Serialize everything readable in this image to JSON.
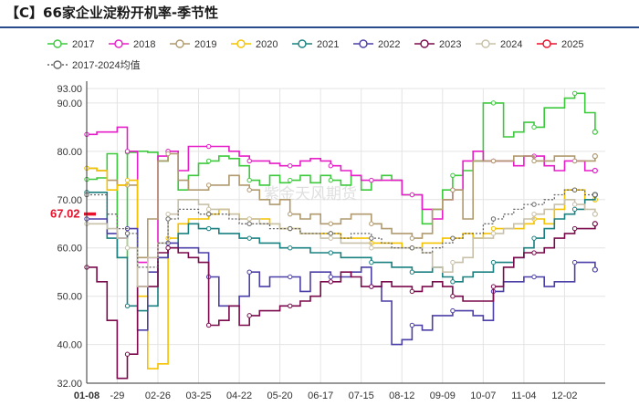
{
  "header": {
    "title": "【C】66家企业淀粉开机率-季节性"
  },
  "watermark": "紫金天风期货",
  "chart_data": {
    "type": "line",
    "title": "【C】66家企业淀粉开机率-季节性",
    "xlabel": "",
    "ylabel": "",
    "ylim": [
      32,
      93
    ],
    "y_ticks": [
      "93.00",
      "90.00",
      "80.00",
      "70.00",
      "60.00",
      "50.00",
      "40.00",
      "32.00"
    ],
    "x_range": [
      0,
      51
    ],
    "x_ticks": [
      {
        "x": 0,
        "label": "01-08",
        "highlight": true
      },
      {
        "x": 3,
        "label": "-29"
      },
      {
        "x": 7,
        "label": "02-26"
      },
      {
        "x": 11,
        "label": "03-25"
      },
      {
        "x": 15,
        "label": "04-22"
      },
      {
        "x": 19,
        "label": "05-20"
      },
      {
        "x": 23,
        "label": "06-17"
      },
      {
        "x": 27,
        "label": "07-15"
      },
      {
        "x": 31,
        "label": "08-12"
      },
      {
        "x": 35,
        "label": "09-09"
      },
      {
        "x": 39,
        "label": "10-07"
      },
      {
        "x": 43,
        "label": "11-04"
      },
      {
        "x": 47,
        "label": "12-02"
      }
    ],
    "grid": true,
    "legend_position": "top",
    "current_value": {
      "label": "67.02",
      "value": 67.02,
      "color": "#e8102a"
    },
    "series": [
      {
        "name": "2017",
        "color": "#3cc93c",
        "dash": false,
        "values": [
          74.2,
          74.5,
          79.5,
          58,
          79.8,
          80,
          79.8,
          78,
          80,
          72,
          75,
          77.5,
          78,
          79,
          78.5,
          77,
          74,
          73,
          75,
          73.5,
          74,
          75,
          73.5,
          75,
          74,
          73,
          75,
          72,
          74,
          75,
          74,
          71,
          71,
          65,
          68,
          72,
          75,
          76,
          78,
          90,
          90,
          83,
          84,
          86,
          85,
          89,
          89,
          91,
          92,
          88,
          84
        ]
      },
      {
        "name": "2018",
        "color": "#e61ec8",
        "dash": false,
        "values": [
          83.5,
          84,
          84,
          85,
          80,
          57,
          58,
          79,
          80,
          76,
          81,
          81,
          81,
          81,
          80,
          79,
          78,
          78,
          77.5,
          77,
          77,
          78,
          78.5,
          78,
          77,
          76,
          75,
          74,
          74,
          74,
          74,
          71,
          71,
          68,
          66,
          70,
          72,
          78,
          80,
          78,
          78,
          78,
          77,
          79,
          79,
          77,
          76,
          78,
          78,
          76,
          76
        ]
      },
      {
        "name": "2019",
        "color": "#b09a6e",
        "dash": false,
        "values": [
          76.5,
          76,
          74,
          73,
          73,
          58,
          66,
          78,
          79.5,
          74,
          72,
          72,
          73,
          73,
          75,
          73,
          72,
          70,
          69,
          70,
          67,
          66,
          67,
          65,
          65,
          66,
          67,
          67,
          65,
          64,
          63,
          63,
          62,
          63,
          68,
          70,
          72,
          66,
          78,
          78,
          78,
          78,
          79,
          79,
          78,
          78,
          79,
          79,
          78,
          78,
          79
        ]
      },
      {
        "name": "2020",
        "color": "#f5c200",
        "dash": false,
        "values": [
          76.5,
          76,
          72,
          73,
          74,
          50,
          35,
          36,
          62,
          65,
          66,
          66,
          67,
          68,
          67,
          66,
          66,
          66,
          65,
          64,
          64,
          63,
          63,
          63,
          63,
          62,
          62,
          62,
          61,
          61,
          61,
          60,
          60,
          61,
          61,
          62,
          62,
          63,
          62,
          63,
          64,
          64,
          64,
          65,
          66,
          65,
          68,
          72,
          72,
          70,
          70
        ]
      },
      {
        "name": "2021",
        "color": "#1a8080",
        "dash": false,
        "values": [
          71.5,
          71.5,
          62,
          58,
          48,
          47,
          48,
          58,
          60,
          63,
          65,
          64,
          64,
          63,
          63,
          62,
          62,
          61,
          61,
          60,
          60,
          60,
          59,
          59,
          59,
          58,
          58,
          58,
          57,
          57,
          56,
          56,
          55,
          55,
          56,
          54,
          53,
          54,
          55,
          55,
          57,
          57,
          58,
          60,
          62,
          64,
          66,
          67,
          68,
          70,
          71
        ]
      },
      {
        "name": "2022",
        "color": "#4b3fa8",
        "dash": false,
        "values": [
          66,
          66,
          63,
          62,
          64,
          43,
          55,
          58,
          61,
          60,
          60,
          59,
          54,
          48,
          48,
          50,
          55,
          52,
          54,
          54,
          54,
          51,
          55,
          55,
          54,
          54,
          55,
          56,
          52,
          49,
          40,
          41,
          44,
          43,
          46,
          46,
          47,
          47,
          46,
          45,
          51,
          53,
          53,
          54,
          54,
          52,
          53,
          53,
          57,
          57,
          55.5
        ]
      },
      {
        "name": "2023",
        "color": "#7a0a4c",
        "dash": false,
        "values": [
          56,
          53,
          45,
          33,
          38,
          52,
          52,
          59,
          60,
          59,
          58,
          57,
          44,
          45,
          48,
          44,
          46,
          47,
          47,
          48,
          48,
          49,
          50,
          53,
          53,
          55,
          54,
          52,
          52,
          53,
          52,
          52,
          51,
          52,
          53,
          52,
          50,
          49,
          49,
          49,
          52,
          56,
          58,
          59,
          59,
          60,
          62,
          63,
          64,
          64,
          65
        ]
      },
      {
        "name": "2024",
        "color": "#c8c0a8",
        "dash": false,
        "values": [
          65,
          65,
          64,
          62,
          60,
          52,
          58,
          61,
          67,
          70,
          70,
          69,
          68,
          68,
          67,
          66,
          66,
          65,
          65,
          64,
          64,
          63,
          63,
          62,
          62,
          61,
          61,
          61,
          60,
          60,
          60,
          60,
          60,
          59,
          56,
          55,
          57,
          58,
          62,
          62,
          63,
          64,
          65,
          66,
          67,
          68,
          69,
          70,
          69,
          68,
          67
        ]
      },
      {
        "name": "2025",
        "color": "#e8102a",
        "dash": false,
        "values": [
          67.02
        ]
      },
      {
        "name": "2017-2024均值",
        "color": "#666666",
        "dash": true,
        "values": [
          71,
          71,
          67,
          64,
          63,
          56,
          56,
          61,
          66,
          68,
          68,
          67,
          67,
          67,
          66,
          65,
          65,
          65,
          64,
          64,
          64,
          63,
          63,
          63,
          63,
          62,
          63,
          63,
          62,
          61,
          60,
          60,
          60,
          59,
          60,
          61,
          62,
          63,
          63,
          65,
          66,
          67,
          68,
          69,
          69,
          70,
          71,
          72,
          72,
          71,
          71
        ]
      }
    ]
  }
}
